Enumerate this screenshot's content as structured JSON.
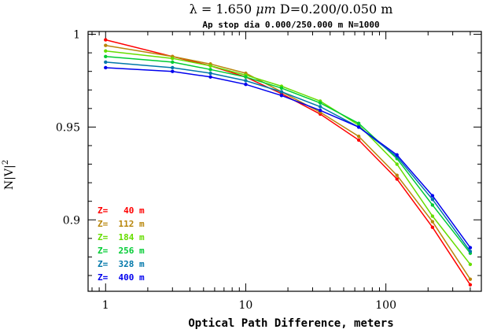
{
  "chart_data": {
    "type": "line",
    "title_parts": [
      "λ = 1.650 ",
      "μm",
      "   D=0.200/0.050 m"
    ],
    "subtitle": "Ap stop dia 0.000/250.000 m  N=1000",
    "xlabel": "Optical Path Difference, meters",
    "ylabel": "N|V|",
    "ylabel_sup": "2",
    "x_scale": "log",
    "xlim": [
      0.75,
      480
    ],
    "ylim": [
      0.8615,
      1.0015
    ],
    "x_ticks": [
      {
        "value": 1,
        "label": "1"
      },
      {
        "value": 10,
        "label": "10"
      },
      {
        "value": 100,
        "label": "100"
      }
    ],
    "y_ticks": [
      {
        "value": 0.9,
        "label": "0.9"
      },
      {
        "value": 0.95,
        "label": "0.95"
      },
      {
        "value": 1.0,
        "label": "1"
      }
    ],
    "grid": false,
    "legend_position": "bottom-left",
    "x": [
      1,
      3,
      5.6,
      10,
      18,
      34,
      64,
      120,
      215,
      400
    ],
    "series": [
      {
        "name": "Z=   40 m",
        "color": "#ff0000",
        "values": [
          0.997,
          0.988,
          0.983,
          0.977,
          0.968,
          0.957,
          0.943,
          0.922,
          0.896,
          0.865
        ]
      },
      {
        "name": "Z=  112 m",
        "color": "#b8860b",
        "values": [
          0.994,
          0.988,
          0.984,
          0.979,
          0.969,
          0.958,
          0.945,
          0.924,
          0.899,
          0.868
        ]
      },
      {
        "name": "Z=  184 m",
        "color": "#66dd00",
        "values": [
          0.991,
          0.987,
          0.983,
          0.978,
          0.972,
          0.964,
          0.951,
          0.93,
          0.902,
          0.876
        ]
      },
      {
        "name": "Z=  256 m",
        "color": "#00cc33",
        "values": [
          0.988,
          0.985,
          0.981,
          0.977,
          0.971,
          0.963,
          0.952,
          0.933,
          0.908,
          0.882
        ]
      },
      {
        "name": "Z=  328 m",
        "color": "#0077aa",
        "values": [
          0.985,
          0.982,
          0.979,
          0.975,
          0.969,
          0.961,
          0.95,
          0.934,
          0.911,
          0.883
        ]
      },
      {
        "name": "Z=  400 m",
        "color": "#0000ee",
        "values": [
          0.982,
          0.98,
          0.977,
          0.973,
          0.967,
          0.959,
          0.95,
          0.935,
          0.913,
          0.885
        ]
      }
    ]
  }
}
